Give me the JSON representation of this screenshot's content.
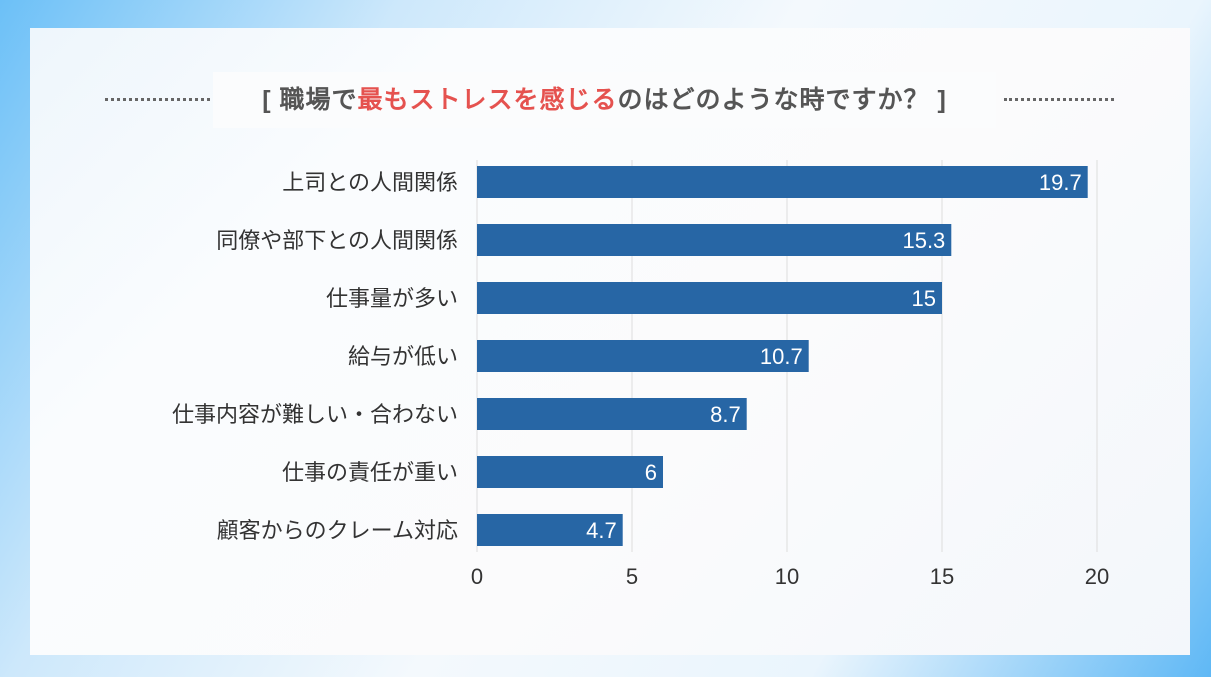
{
  "title": {
    "before": "[ 職場で",
    "highlight": "最もストレスを感じる",
    "after": "のはどのような時ですか？ ]"
  },
  "colors": {
    "bar": "#2766a5",
    "highlight": "#e5524f",
    "grid": "#dddddd"
  },
  "chart_data": {
    "type": "bar",
    "orientation": "horizontal",
    "title": "[ 職場で最もストレスを感じるのはどのような時ですか？ ]",
    "categories": [
      "上司との人間関係",
      "同僚や部下との人間関係",
      "仕事量が多い",
      "給与が低い",
      "仕事内容が難しい・合わない",
      "仕事の責任が重い",
      "顧客からのクレーム対応"
    ],
    "values": [
      19.7,
      15.3,
      15,
      10.7,
      8.7,
      6,
      4.7
    ],
    "xlim": [
      0,
      20
    ],
    "xticks": [
      0,
      5,
      10,
      15,
      20
    ],
    "grid": true,
    "xlabel": "",
    "ylabel": ""
  }
}
